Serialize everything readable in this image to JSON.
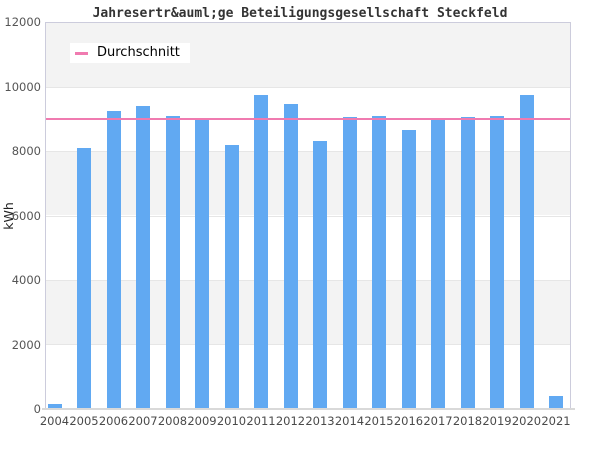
{
  "chart_data": {
    "type": "bar",
    "title": "Jahresertr&auml;ge Beteiligungsgesellschaft Steckfeld",
    "ylabel": "kWh",
    "xlabel": "",
    "categories": [
      "2004",
      "2005",
      "2006",
      "2007",
      "2008",
      "2009",
      "2010",
      "2011",
      "2012",
      "2013",
      "2014",
      "2015",
      "2016",
      "2017",
      "2018",
      "2019",
      "2020",
      "2021"
    ],
    "values": [
      150,
      8100,
      9250,
      9400,
      9100,
      8950,
      8200,
      9750,
      9450,
      8300,
      9050,
      9100,
      8650,
      8950,
      9050,
      9100,
      9750,
      400
    ],
    "average_line": {
      "label": "Durchschnitt",
      "value": 9000,
      "color": "#f07bb0"
    },
    "ylim": [
      0,
      12000
    ],
    "yticks": [
      0,
      2000,
      4000,
      6000,
      8000,
      10000,
      12000
    ],
    "bar_color": "#61a9f2",
    "band_color": "#f3f3f3",
    "legend_position": "top-left",
    "grid": "banded"
  }
}
